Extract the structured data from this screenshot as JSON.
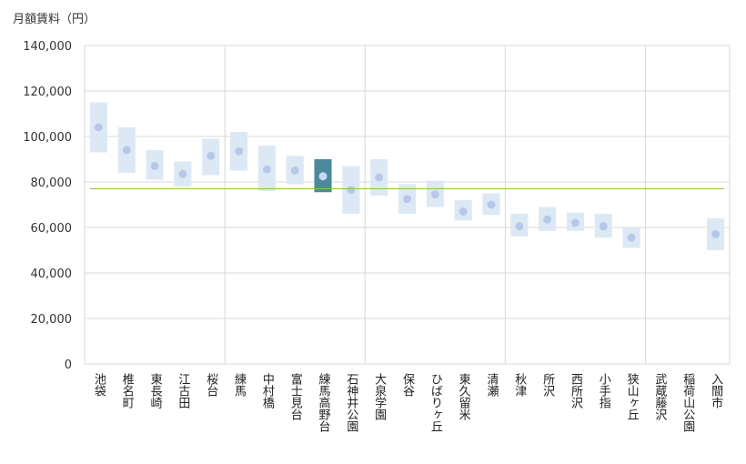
{
  "chart_data": {
    "type": "range-bar",
    "ylabel": "月額賃料（円）",
    "ylim": [
      0,
      140000
    ],
    "yticks": [
      0,
      20000,
      40000,
      60000,
      80000,
      100000,
      120000,
      140000
    ],
    "ytick_labels": [
      "0",
      "20,000",
      "40,000",
      "60,000",
      "80,000",
      "100,000",
      "120,000",
      "140,000"
    ],
    "reference_line": 77000,
    "highlight_index": 8,
    "group_separators_after": [
      4,
      9,
      14,
      19
    ],
    "categories": [
      "池袋",
      "椎名町",
      "東長崎",
      "江古田",
      "桜台",
      "練馬",
      "中村橋",
      "富士見台",
      "練馬高野台",
      "石神井公園",
      "大泉学園",
      "保谷",
      "ひばりヶ丘",
      "東久留米",
      "清瀬",
      "秋津",
      "所沢",
      "西所沢",
      "小手指",
      "狭山ヶ丘",
      "武蔵藤沢",
      "稲荷山公園",
      "入間市"
    ],
    "low": [
      93000,
      84000,
      81000,
      78000,
      83000,
      85000,
      76000,
      79000,
      75500,
      66000,
      74000,
      66000,
      69000,
      63000,
      65500,
      56000,
      58500,
      58500,
      55500,
      51000,
      null,
      null,
      50000
    ],
    "high": [
      115000,
      104000,
      94000,
      89000,
      99000,
      102000,
      96000,
      91500,
      90000,
      87000,
      90000,
      79000,
      80500,
      72000,
      75000,
      66000,
      69000,
      66500,
      66000,
      60000,
      null,
      null,
      64000
    ],
    "avg": [
      104000,
      94000,
      87000,
      83500,
      91500,
      93500,
      85500,
      85000,
      82500,
      76500,
      82000,
      72500,
      74500,
      67000,
      70000,
      60500,
      63500,
      62000,
      60500,
      55500,
      null,
      null,
      57000
    ],
    "colors": {
      "range": "#dce9f5",
      "highlight": "#4a8a9c",
      "dot": "#b6c8ea",
      "dot_highlight": "#c8d8f2",
      "reference": "#8cc63f",
      "grid": "#d9d9d9"
    }
  }
}
